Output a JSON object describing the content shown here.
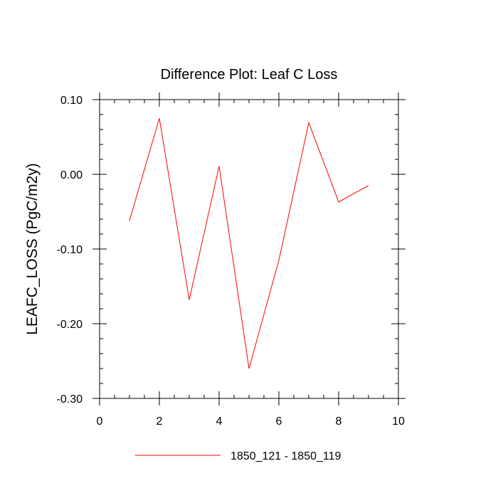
{
  "chart_data": {
    "type": "line",
    "title": "Difference Plot: Leaf C Loss",
    "xlabel": "",
    "ylabel": "LEAFC_LOSS  (PgC/m2y)",
    "xlim": [
      0,
      10
    ],
    "ylim": [
      -0.3,
      0.1
    ],
    "xticks": [
      0,
      2,
      4,
      6,
      8,
      10
    ],
    "xtick_labels": [
      "0",
      "2",
      "4",
      "6",
      "8",
      "10"
    ],
    "yticks": [
      0.1,
      0.0,
      -0.1,
      -0.2,
      -0.3
    ],
    "ytick_labels": [
      "0.10",
      "0.00",
      "-0.10",
      "-0.20",
      "-0.30"
    ],
    "grid": false,
    "legend_position": "bottom-center",
    "series": [
      {
        "name": "1850_121 - 1850_119",
        "color": "#ff0000",
        "x": [
          1,
          2,
          3,
          4,
          5,
          6,
          7,
          8,
          9
        ],
        "y": [
          -0.062,
          0.075,
          -0.168,
          0.011,
          -0.26,
          -0.115,
          0.069,
          -0.037,
          -0.015
        ]
      }
    ]
  }
}
